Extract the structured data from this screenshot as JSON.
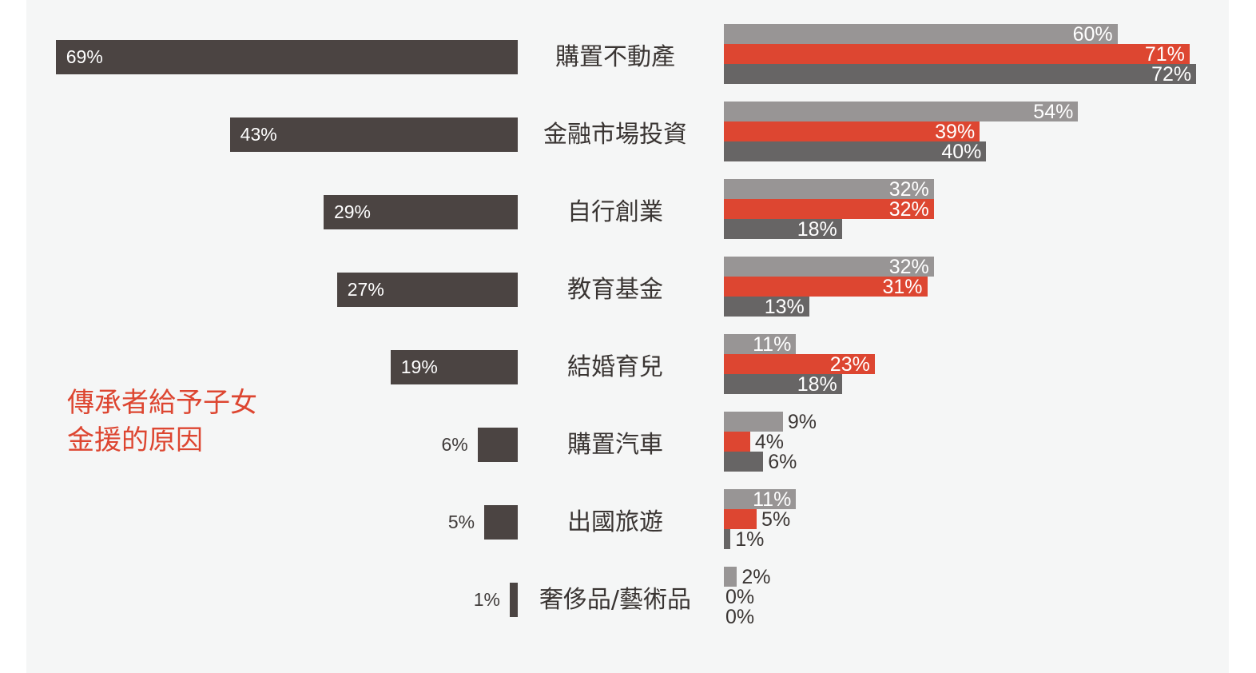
{
  "chart_data": {
    "type": "bar",
    "title": "傳承者給予子女金援的原因",
    "orientation": "horizontal",
    "categories": [
      "購置不動產",
      "金融市場投資",
      "自行創業",
      "教育基金",
      "結婚育兒",
      "購置汽車",
      "出國旅遊",
      "奢侈品/藝術品"
    ],
    "left_chart": {
      "series": [
        {
          "name": "overall",
          "color": "#4b4442",
          "values": [
            69,
            43,
            29,
            27,
            19,
            6,
            5,
            1
          ]
        }
      ],
      "labels": [
        "69%",
        "43%",
        "29%",
        "27%",
        "19%",
        "6%",
        "5%",
        "1%"
      ]
    },
    "right_chart": {
      "series": [
        {
          "name": "series_1",
          "color": "#989595",
          "values": [
            60,
            54,
            32,
            32,
            11,
            9,
            11,
            2
          ]
        },
        {
          "name": "series_2",
          "color": "#dd4631",
          "values": [
            71,
            39,
            32,
            31,
            23,
            4,
            5,
            0
          ]
        },
        {
          "name": "series_3",
          "color": "#676565",
          "values": [
            72,
            40,
            18,
            13,
            18,
            6,
            1,
            0
          ]
        }
      ]
    },
    "xlabel": "",
    "ylabel": "",
    "grid": false,
    "legend": "none",
    "unit": "%"
  },
  "title": {
    "line1": "傳承者給予子女",
    "line2": "金援的原因"
  },
  "colors": {
    "background": "#f5f6f6",
    "left_bar": "#4b4442",
    "accent_red": "#dd4631",
    "light_gray": "#989595",
    "dark_gray": "#676565"
  }
}
